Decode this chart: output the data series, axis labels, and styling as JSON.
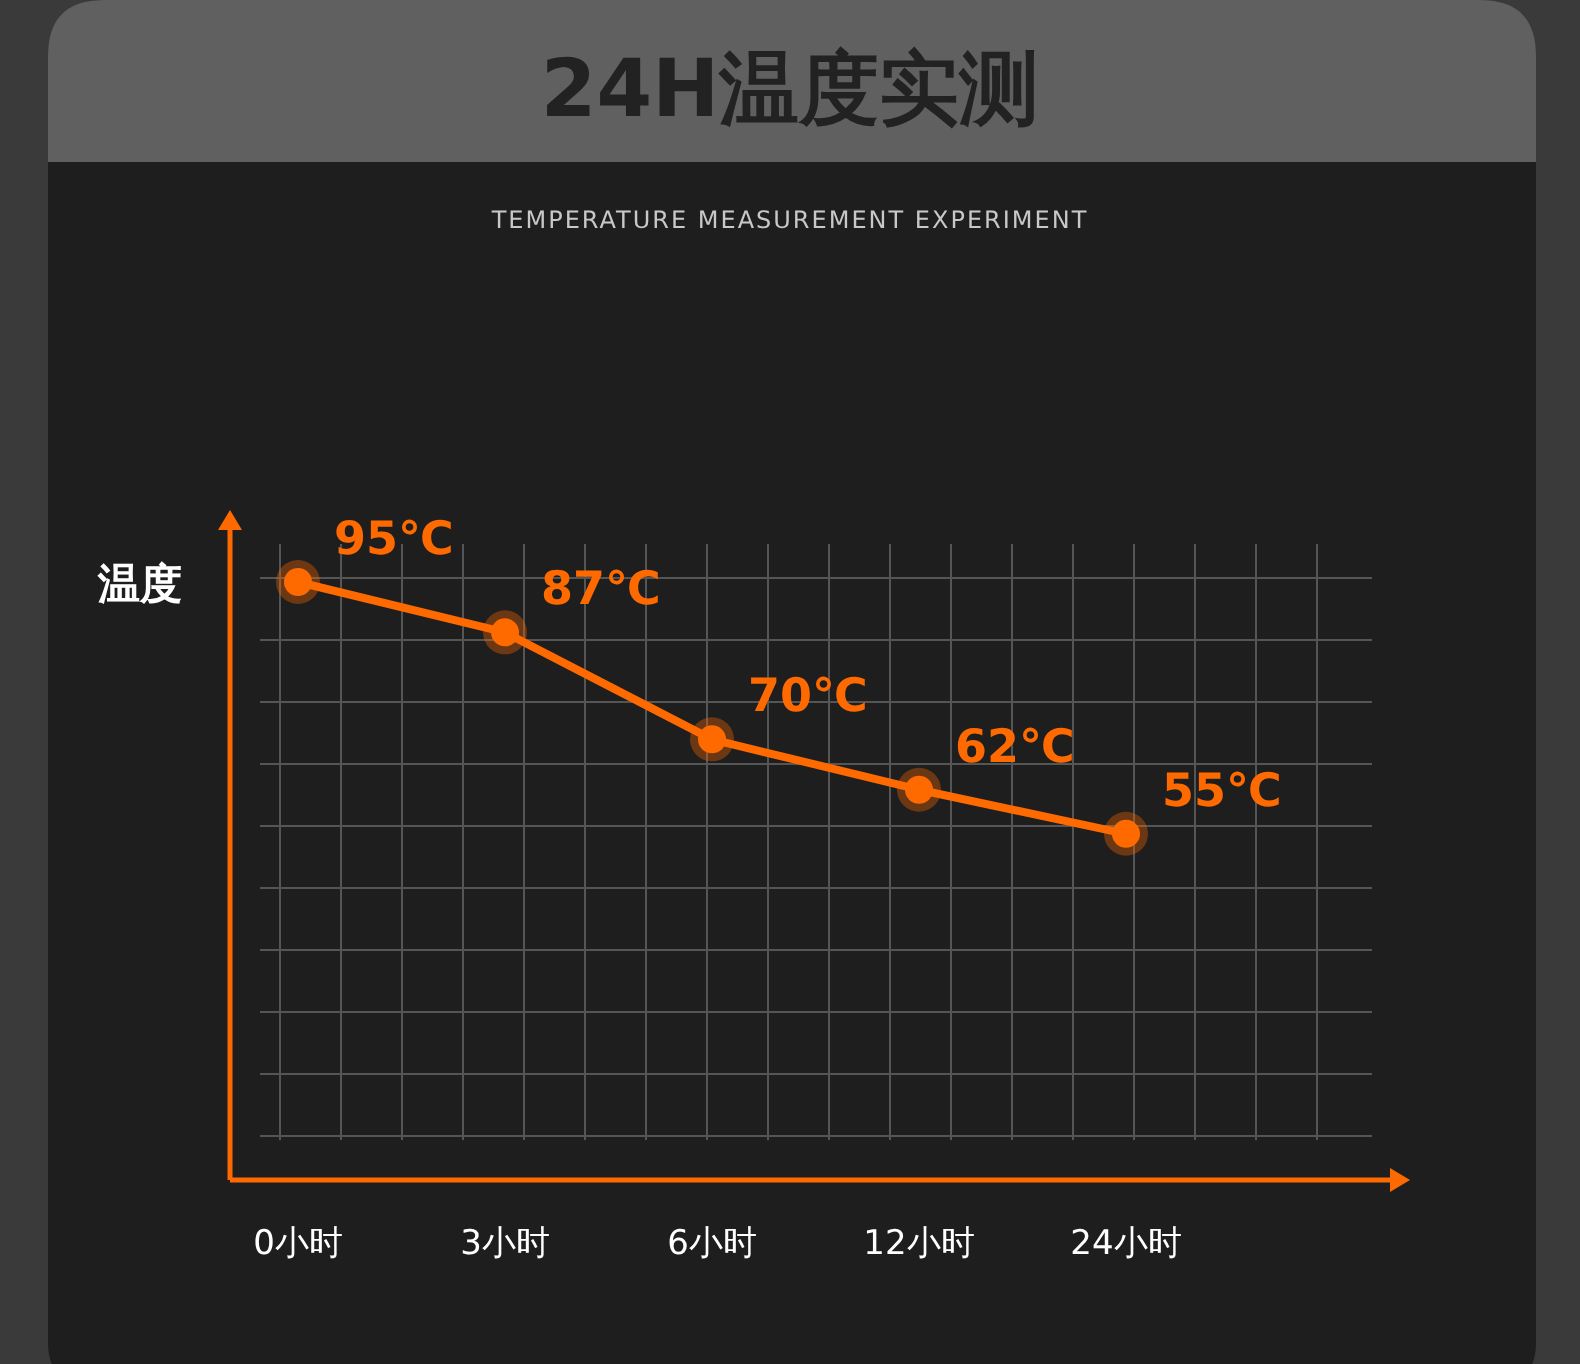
{
  "chart_data": {
    "type": "line",
    "title": "24H温度实测",
    "subtitle": "TEMPERATURE MEASUREMENT EXPERIMENT",
    "ylabel": "温度",
    "categories": [
      "0小时",
      "3小时",
      "6小时",
      "12小时",
      "24小时"
    ],
    "series": [
      {
        "color": "#ff6a00",
        "values": [
          95,
          87,
          70,
          62,
          55
        ],
        "value_labels": [
          "95℃",
          "87℃",
          "70℃",
          "62℃",
          "55℃"
        ]
      }
    ],
    "grid": true,
    "marker": "circle",
    "line_style": "solid"
  }
}
